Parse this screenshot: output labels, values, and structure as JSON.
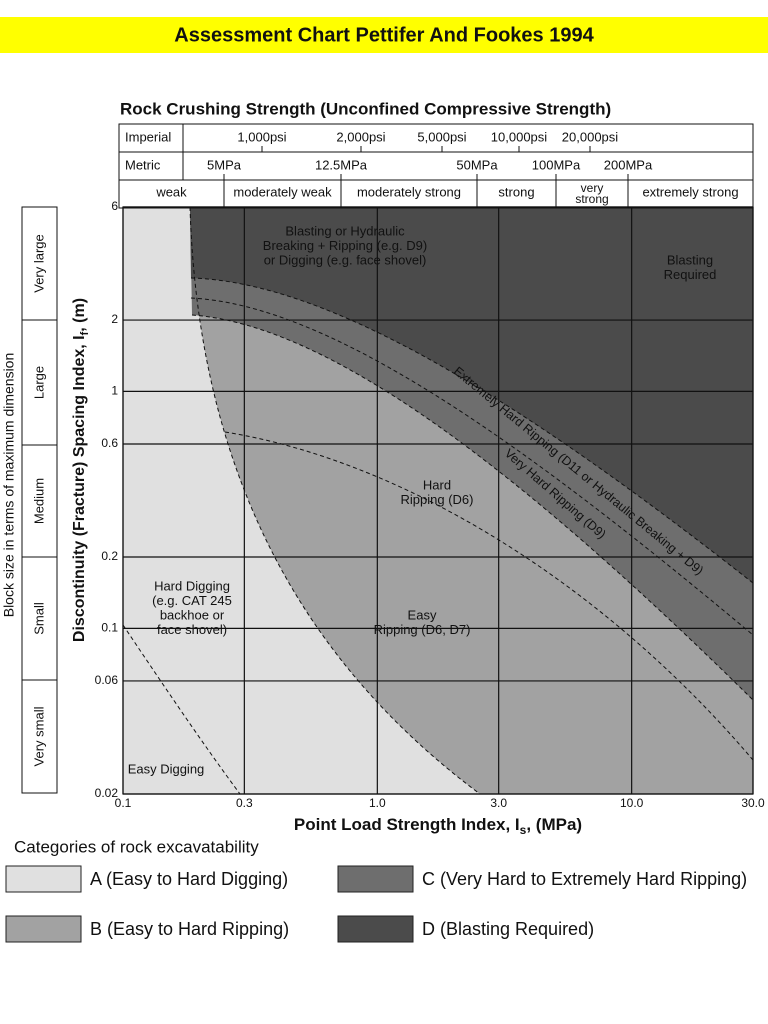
{
  "chart_data": {
    "type": "excavatability",
    "banner": "Assessment Chart Pettifer And Fookes 1994",
    "title": "Rock Crushing Strength (Unconfined Compressive Strength)",
    "strength_table": {
      "imperial_label": "Imperial",
      "imperial": [
        "1,000psi",
        "2,000psi",
        "5,000psi",
        "10,000psi",
        "20,000psi"
      ],
      "metric_label": "Metric",
      "metric": [
        "5MPa",
        "12.5MPa",
        "50MPa",
        "100MPa",
        "200MPa"
      ],
      "classes": [
        "weak",
        "moderately weak",
        "moderately strong",
        "strong",
        "very strong",
        "extremely strong"
      ]
    },
    "x_label": [
      "Point Load Strength Index, I",
      "s",
      ", (MPa)"
    ],
    "y_label": [
      "Discontinuity (Fracture) Spacing Index, I",
      "f",
      ", (m)"
    ],
    "block_size_label": "Block size in terms of maximum dimension",
    "block_sizes": [
      "Very large",
      "Large",
      "Medium",
      "Small",
      "Very small"
    ],
    "x_log": true,
    "y_log": true,
    "grid": true,
    "xlim": [
      0.1,
      30
    ],
    "ylim": [
      0.02,
      6
    ],
    "xticks": [
      0.1,
      0.3,
      {
        "value": 1,
        "label": "1.0"
      },
      {
        "value": 3,
        "label": "3.0"
      },
      {
        "value": 10,
        "label": "10.0"
      },
      {
        "value": 30,
        "label": "30.0"
      }
    ],
    "yticks": [
      0.02,
      0.06,
      0.1,
      0.2,
      0.6,
      1,
      2,
      6
    ],
    "annotations": [
      [
        "Blasting or Hydraulic",
        "Breaking + Ripping (e.g. D9)",
        "or Digging (e.g. face shovel)"
      ],
      [
        "Blasting",
        "Required"
      ],
      [
        "Hard",
        "Ripping (D6)"
      ],
      [
        "Easy",
        "Ripping (D6, D7)"
      ],
      [
        "Hard Digging",
        "(e.g. CAT 245",
        "backhoe or",
        "face shovel)"
      ],
      [
        "Easy Digging"
      ]
    ],
    "diagonal_annotations": [
      "Extremely Hard Ripping (D11 or Hydraulic Breaking + D9)",
      "Very Hard Ripping (D9)"
    ],
    "legend_title": "Categories of rock excavatability",
    "legend": [
      {
        "name": "A (Easy to Hard Digging)",
        "color": "#e0e0e0"
      },
      {
        "name": "B (Easy to Hard Ripping)",
        "color": "#a2a2a2"
      },
      {
        "name": "C (Very Hard to Extremely Hard Ripping)",
        "color": "#6e6e6e"
      },
      {
        "name": "D (Blasting Required)",
        "color": "#4b4b4b"
      }
    ]
  }
}
